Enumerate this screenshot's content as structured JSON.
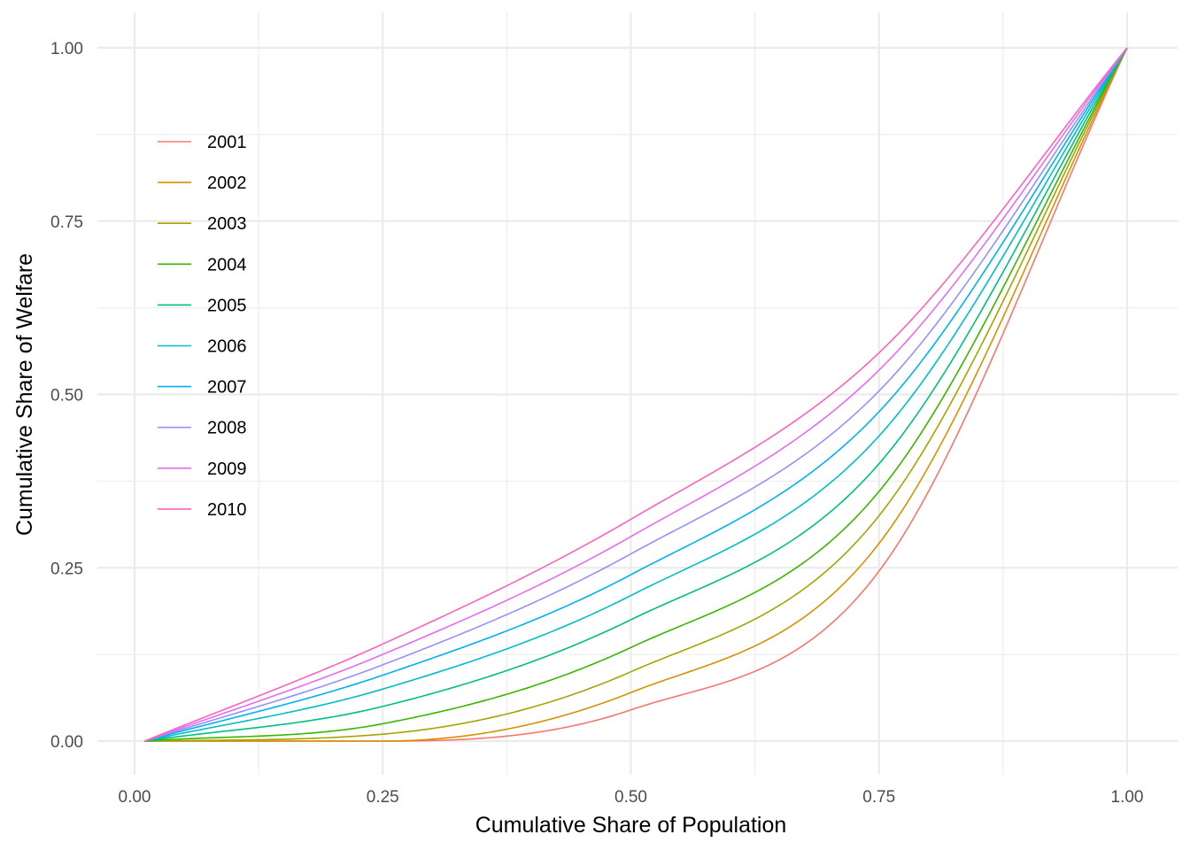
{
  "chart_data": {
    "type": "line",
    "title": "",
    "xlabel": "Cumulative Share of Population",
    "ylabel": "Cumulative Share of Welfare",
    "xlim": [
      0,
      1
    ],
    "ylim": [
      0,
      1
    ],
    "x_ticks": [
      "0.00",
      "0.25",
      "0.50",
      "0.75",
      "1.00"
    ],
    "y_ticks": [
      "0.00",
      "0.25",
      "0.50",
      "0.75",
      "1.00"
    ],
    "grid": true,
    "legend_position": "top-left, inside plot",
    "x": [
      0.01,
      0.25,
      0.5,
      0.75,
      1.0
    ],
    "series": [
      {
        "name": "2001",
        "color": "#F8766D",
        "values": [
          0.0,
          0.0,
          0.045,
          0.245,
          1.0
        ]
      },
      {
        "name": "2002",
        "color": "#D89000",
        "values": [
          0.0,
          0.0,
          0.07,
          0.285,
          1.0
        ]
      },
      {
        "name": "2003",
        "color": "#A3A500",
        "values": [
          0.0,
          0.01,
          0.1,
          0.325,
          1.0
        ]
      },
      {
        "name": "2004",
        "color": "#39B600",
        "values": [
          0.0,
          0.025,
          0.135,
          0.36,
          1.0
        ]
      },
      {
        "name": "2005",
        "color": "#00BF7D",
        "values": [
          0.0,
          0.05,
          0.175,
          0.4,
          1.0
        ]
      },
      {
        "name": "2006",
        "color": "#00BFC4",
        "values": [
          0.0,
          0.075,
          0.21,
          0.44,
          1.0
        ]
      },
      {
        "name": "2007",
        "color": "#00B0F6",
        "values": [
          0.0,
          0.095,
          0.24,
          0.475,
          1.0
        ]
      },
      {
        "name": "2008",
        "color": "#9590FF",
        "values": [
          0.0,
          0.11,
          0.27,
          0.505,
          1.0
        ]
      },
      {
        "name": "2009",
        "color": "#E76BF3",
        "values": [
          0.0,
          0.125,
          0.295,
          0.535,
          1.0
        ]
      },
      {
        "name": "2010",
        "color": "#FF62BC",
        "values": [
          0.0,
          0.14,
          0.32,
          0.56,
          1.0
        ]
      }
    ]
  }
}
